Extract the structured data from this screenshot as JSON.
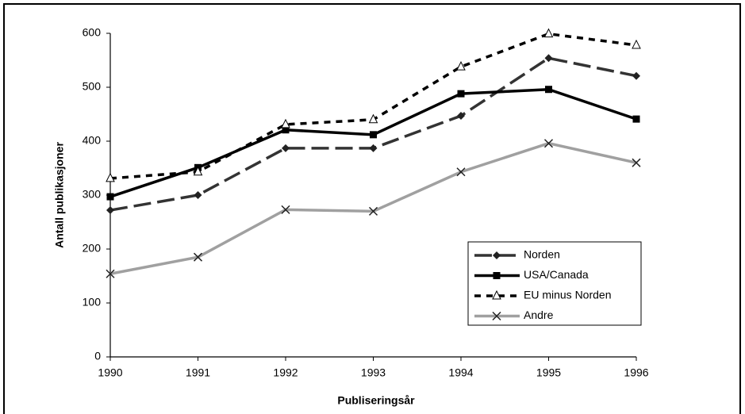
{
  "chart_data": {
    "type": "line",
    "x_label": "Publiseringsår",
    "y_label": "Antall publikasjoner",
    "categories": [
      "1990",
      "1991",
      "1992",
      "1993",
      "1994",
      "1995",
      "1996"
    ],
    "series": [
      {
        "name": "Norden",
        "color": "#333333",
        "marker_color": "#222222",
        "dash": "long",
        "marker": "diamond",
        "values": [
          272,
          300,
          387,
          387,
          447,
          554,
          521
        ]
      },
      {
        "name": "USA/Canada",
        "color": "#000000",
        "marker_color": "#000000",
        "dash": "solid",
        "marker": "square",
        "values": [
          297,
          351,
          421,
          412,
          488,
          496,
          441
        ]
      },
      {
        "name": "EU minus Norden",
        "color": "#000000",
        "marker_color": "#000000",
        "dash": "short",
        "marker": "triangle",
        "values": [
          331,
          343,
          431,
          440,
          538,
          599,
          578
        ]
      },
      {
        "name": "Andre",
        "color": "#a0a0a0",
        "marker_color": "#222222",
        "dash": "solid",
        "marker": "x",
        "values": [
          154,
          185,
          273,
          270,
          343,
          396,
          360
        ]
      }
    ],
    "ylim": [
      0,
      600
    ],
    "yticks": [
      0,
      100,
      200,
      300,
      400,
      500,
      600
    ],
    "grid": false,
    "legend": "lower right"
  }
}
